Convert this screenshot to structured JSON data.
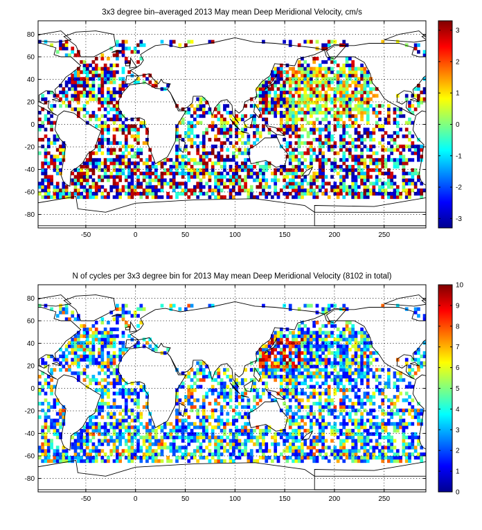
{
  "panels": [
    {
      "title": "3x3 degree bin–averaged 2013 May mean Deep Meridional Velocity, cm/s",
      "kind": "velocity",
      "colorbar": {
        "min": -3.3,
        "max": 3.3,
        "ticks": [
          "-3",
          "-2",
          "-1",
          "0",
          "1",
          "2",
          "3"
        ],
        "tick_values": [
          -3,
          -2,
          -1,
          0,
          1,
          2,
          3
        ]
      }
    },
    {
      "title": "N of cycles per 3x3 degree bin for 2013 May mean Deep Meridional Velocity (8102 in total)",
      "kind": "count",
      "colorbar": {
        "min": 0,
        "max": 10,
        "ticks": [
          "0",
          "1",
          "2",
          "3",
          "4",
          "5",
          "6",
          "7",
          "8",
          "9",
          "10"
        ],
        "tick_values": [
          0,
          1,
          2,
          3,
          4,
          5,
          6,
          7,
          8,
          9,
          10
        ]
      }
    }
  ],
  "map": {
    "lon_range": [
      -98,
      292
    ],
    "lat_range": [
      -92,
      92
    ],
    "x_ticks": [
      "-50",
      "0",
      "50",
      "100",
      "150",
      "200",
      "250"
    ],
    "x_tick_values": [
      -50,
      0,
      50,
      100,
      150,
      200,
      250
    ],
    "y_ticks": [
      "80",
      "60",
      "40",
      "20",
      "0",
      "-20",
      "-40",
      "-60",
      "-80"
    ],
    "y_tick_values": [
      80,
      60,
      40,
      20,
      0,
      -20,
      -40,
      -60,
      -80
    ],
    "bin_size_deg": 3,
    "colormap": "jet"
  }
}
